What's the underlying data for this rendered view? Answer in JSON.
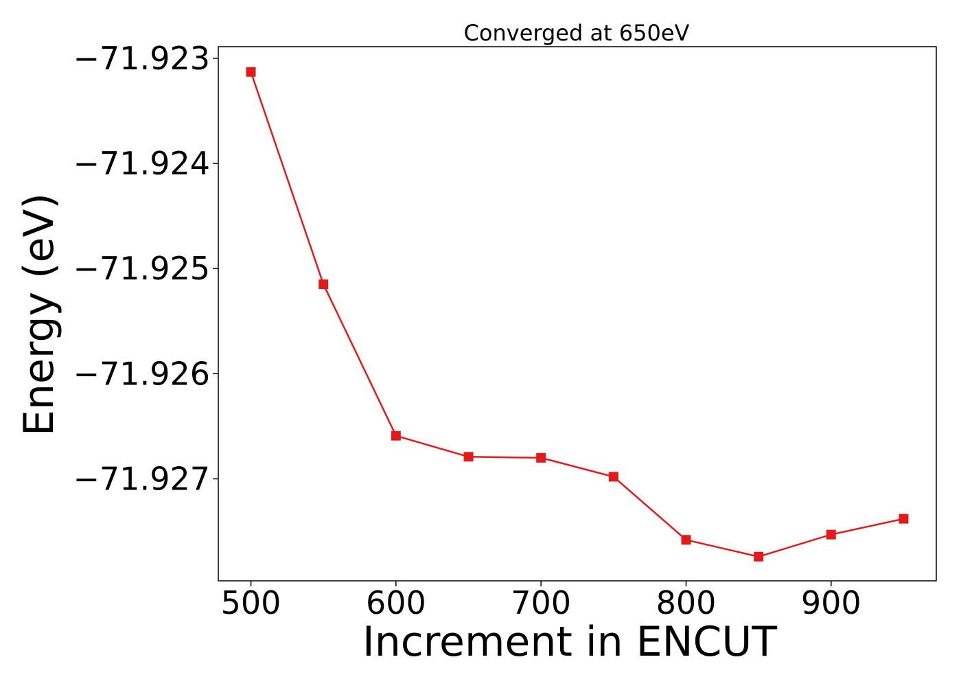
{
  "chart_data": {
    "type": "line",
    "title": "Converged at 650eV",
    "xlabel": "Increment in ENCUT",
    "ylabel": "Energy (eV)",
    "xlim": [
      477.5,
      972.5
    ],
    "ylim": [
      -71.92797,
      -71.92289
    ],
    "x_ticks": [
      500,
      600,
      700,
      800,
      900
    ],
    "x_tick_labels": [
      "500",
      "600",
      "700",
      "800",
      "900"
    ],
    "y_ticks": [
      -71.923,
      -71.924,
      -71.925,
      -71.926,
      -71.927
    ],
    "y_tick_labels": [
      "−71.923",
      "−71.924",
      "−71.925",
      "−71.926",
      "−71.927"
    ],
    "grid": false,
    "legend": "none",
    "series": [
      {
        "color": "#e31a1c",
        "marker": "square",
        "x": [
          500,
          550,
          600,
          650,
          700,
          750,
          800,
          850,
          900,
          950
        ],
        "y": [
          -71.92313,
          -71.92515,
          -71.92659,
          -71.92679,
          -71.9268,
          -71.92698,
          -71.92758,
          -71.92774,
          -71.92753,
          -71.92738
        ]
      }
    ]
  }
}
